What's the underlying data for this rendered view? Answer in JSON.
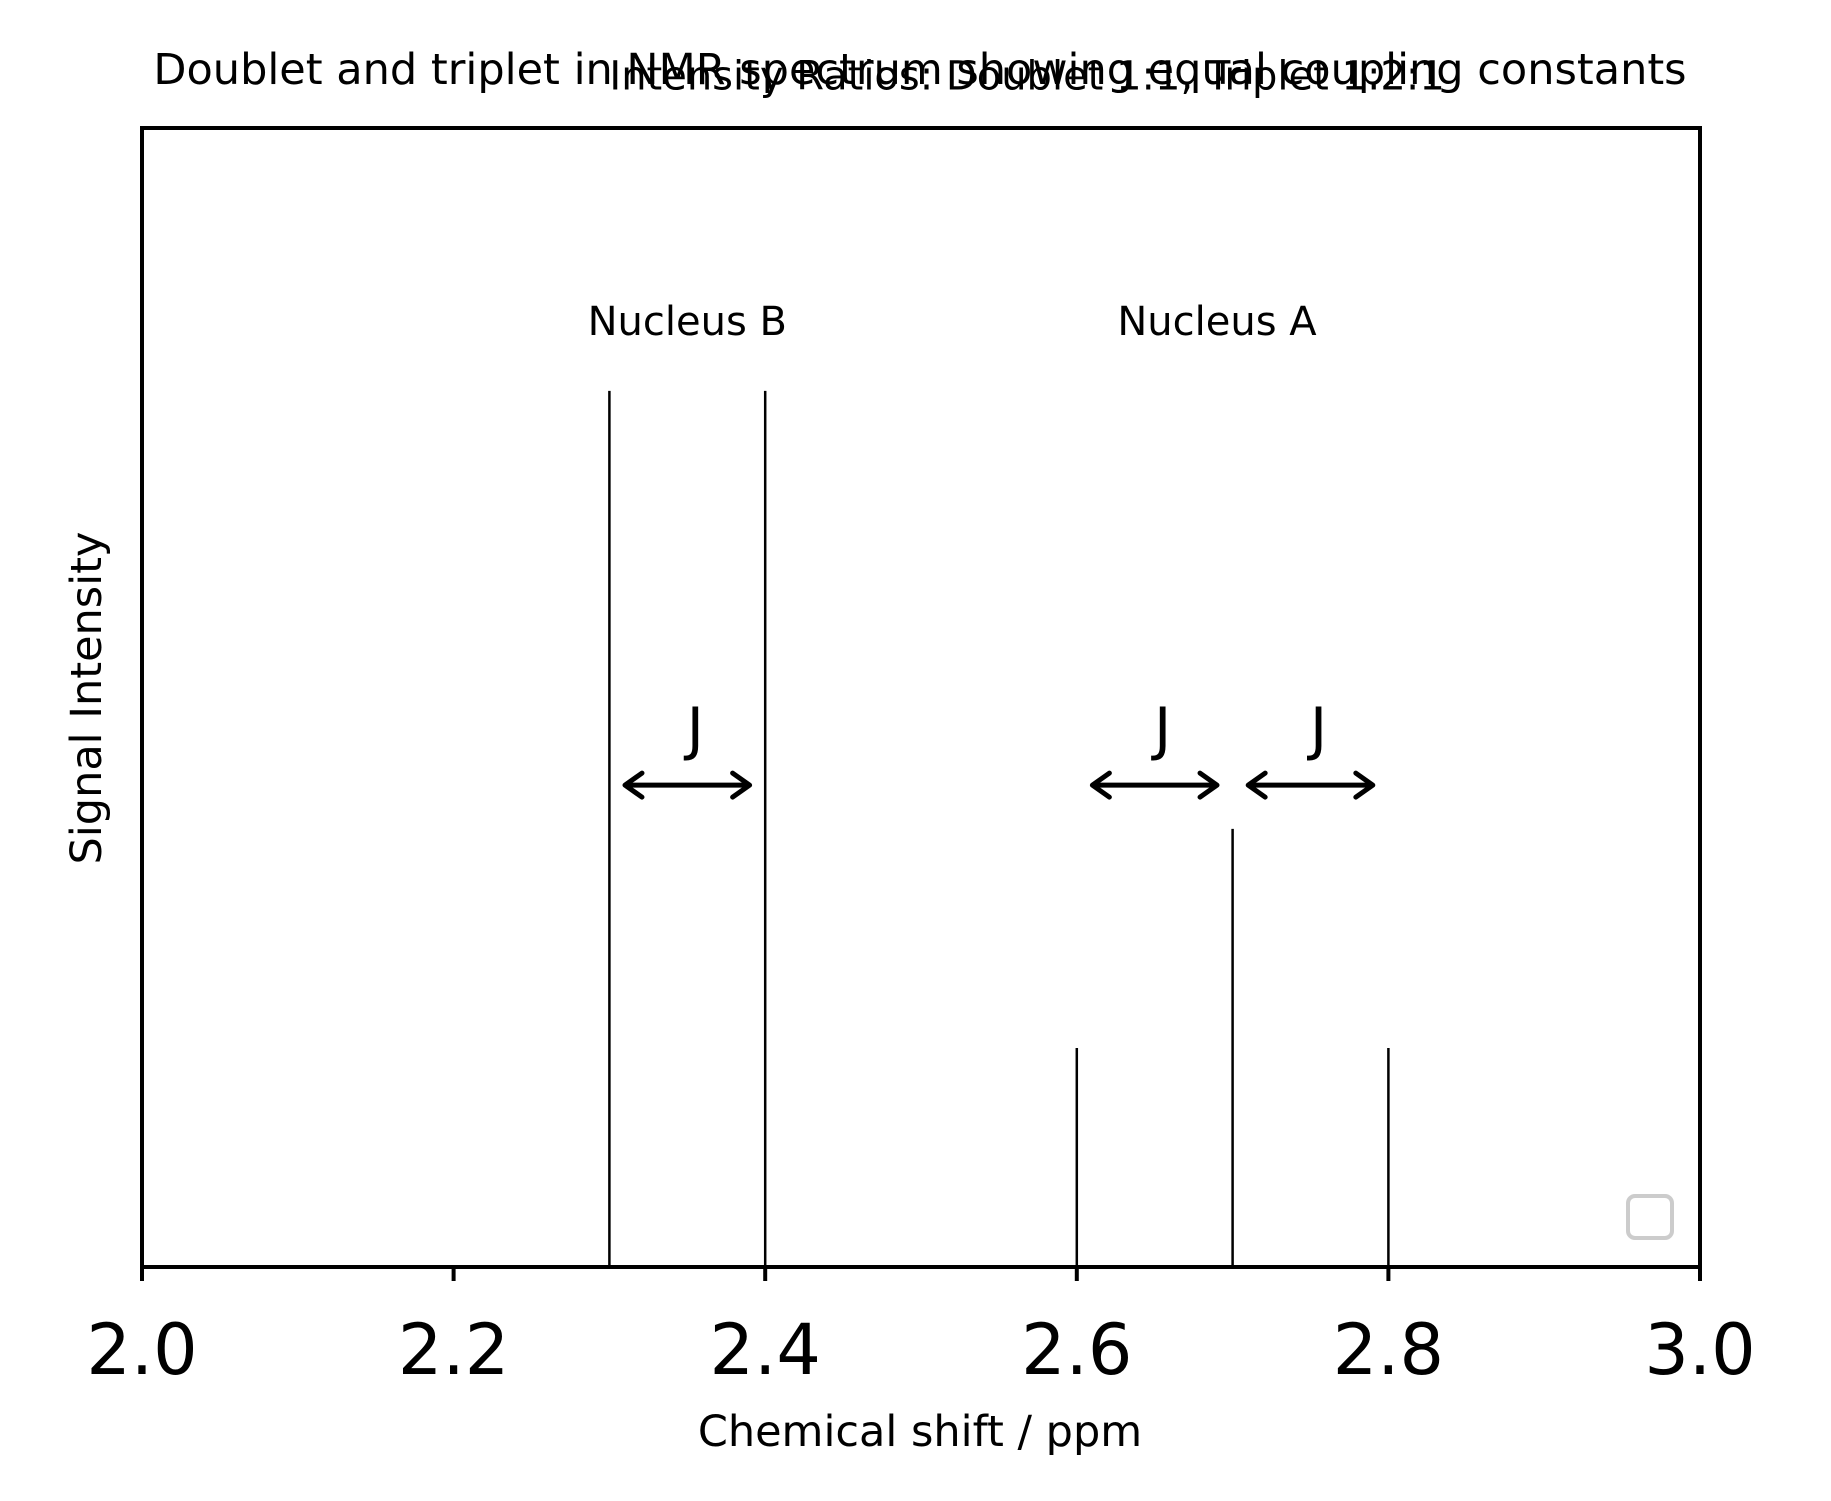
{
  "chart_data": {
    "type": "bar",
    "title": "Doublet and triplet in NMR spectrum showing equal coupling constants",
    "xlabel": "Chemical shift / ppm",
    "ylabel": "Signal Intensity",
    "xlim": [
      2.0,
      3.0
    ],
    "ylim": [
      0,
      1.3
    ],
    "x_ticks": [
      "2.0",
      "2.2",
      "2.4",
      "2.6",
      "2.8",
      "3.0"
    ],
    "x_tick_values": [
      2.0,
      2.2,
      2.4,
      2.6,
      2.8,
      3.0
    ],
    "y_ticks_shown": false,
    "grid": false,
    "legend": {
      "placement": "lower right",
      "entries": []
    },
    "series": [
      {
        "group": "Nucleus B",
        "x": [
          2.3,
          2.4
        ],
        "values": [
          1.0,
          1.0
        ]
      },
      {
        "group": "Nucleus A",
        "x": [
          2.6,
          2.7,
          2.8
        ],
        "values": [
          0.25,
          0.5,
          0.25
        ]
      }
    ],
    "annotations": [
      {
        "text": "Intensity Ratios: Doublet 1:1, Triplet 1:2:1",
        "x": 2.3,
        "y": 1.36
      },
      {
        "text": "Nucleus B",
        "x": 2.35,
        "y": 1.08
      },
      {
        "text": "Nucleus A",
        "x": 2.69,
        "y": 1.08
      }
    ],
    "j_arrows": [
      {
        "label": "J",
        "from": 2.31,
        "to": 2.39,
        "y": 0.55
      },
      {
        "label": "J",
        "from": 2.61,
        "to": 2.69,
        "y": 0.55
      },
      {
        "label": "J",
        "from": 2.71,
        "to": 2.79,
        "y": 0.55
      }
    ]
  }
}
